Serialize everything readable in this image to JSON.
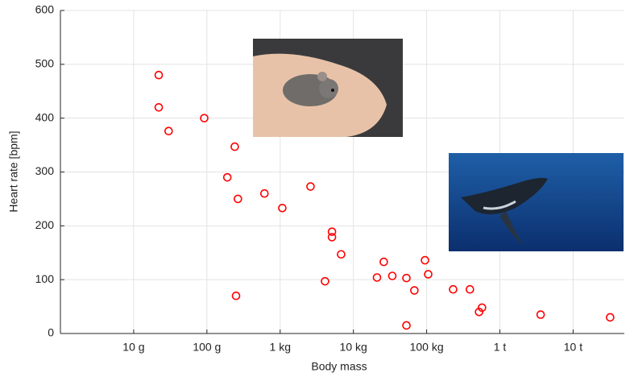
{
  "chart_data": {
    "type": "scatter",
    "xlabel": "Body mass",
    "ylabel": "Heart rate [bpm]",
    "xscale": "log",
    "grid": true,
    "color": "#ff0000",
    "xlim": [
      1,
      50000000
    ],
    "ylim": [
      0,
      600
    ],
    "xticks": [
      {
        "value": 10,
        "label": "10 g"
      },
      {
        "value": 100,
        "label": "100 g"
      },
      {
        "value": 1000,
        "label": "1 kg"
      },
      {
        "value": 10000,
        "label": "10 kg"
      },
      {
        "value": 100000,
        "label": "100 kg"
      },
      {
        "value": 1000000,
        "label": "1 t"
      },
      {
        "value": 10000000,
        "label": "10 t"
      }
    ],
    "yticks": [
      0,
      100,
      200,
      300,
      400,
      500,
      600
    ],
    "x": [
      22,
      22,
      30,
      92,
      240,
      190,
      265,
      250,
      610,
      1070,
      2600,
      5100,
      5100,
      6800,
      4100,
      21000,
      26000,
      34000,
      53000,
      53000,
      68000,
      95000,
      105000,
      230000,
      390000,
      570000,
      520000,
      3600000,
      32000000
    ],
    "values": [
      480,
      420,
      376,
      400,
      347,
      290,
      250,
      70,
      260,
      233,
      273,
      189,
      179,
      147,
      97,
      104,
      133,
      107,
      103,
      15,
      80,
      136,
      110,
      82,
      82,
      48,
      40,
      35,
      30
    ]
  }
}
